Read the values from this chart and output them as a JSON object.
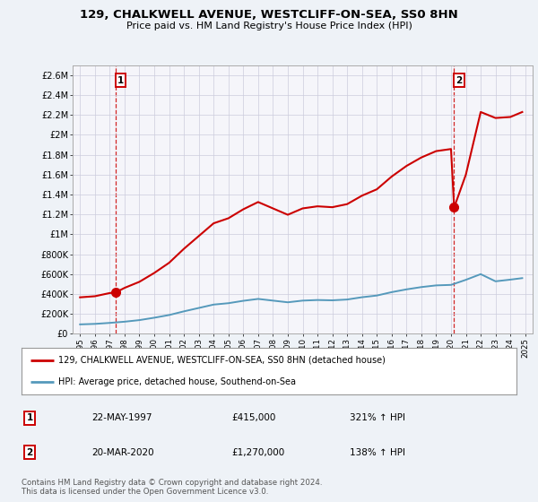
{
  "title": "129, CHALKWELL AVENUE, WESTCLIFF-ON-SEA, SS0 8HN",
  "subtitle": "Price paid vs. HM Land Registry's House Price Index (HPI)",
  "legend_line1": "129, CHALKWELL AVENUE, WESTCLIFF-ON-SEA, SS0 8HN (detached house)",
  "legend_line2": "HPI: Average price, detached house, Southend-on-Sea",
  "footnote": "Contains HM Land Registry data © Crown copyright and database right 2024.\nThis data is licensed under the Open Government Licence v3.0.",
  "transaction1_label": "1",
  "transaction1_date": "22-MAY-1997",
  "transaction1_price": "£415,000",
  "transaction1_hpi": "321% ↑ HPI",
  "transaction1_year": 1997.39,
  "transaction1_value": 415000,
  "transaction2_label": "2",
  "transaction2_date": "20-MAR-2020",
  "transaction2_price": "£1,270,000",
  "transaction2_hpi": "138% ↑ HPI",
  "transaction2_year": 2020.21,
  "transaction2_value": 1270000,
  "price_line_color": "#cc0000",
  "hpi_line_color": "#5599bb",
  "dashed_line_color": "#cc0000",
  "bg_color": "#eef2f7",
  "plot_bg_color": "#f5f5fa",
  "grid_color": "#ccccdd",
  "ylim": [
    0,
    2700000
  ],
  "yticks": [
    0,
    200000,
    400000,
    600000,
    800000,
    1000000,
    1200000,
    1400000,
    1600000,
    1800000,
    2000000,
    2200000,
    2400000,
    2600000
  ],
  "ytick_labels": [
    "£0",
    "£200K",
    "£400K",
    "£600K",
    "£800K",
    "£1M",
    "£1.2M",
    "£1.4M",
    "£1.6M",
    "£1.8M",
    "£2M",
    "£2.2M",
    "£2.4M",
    "£2.6M"
  ],
  "xlim": [
    1994.5,
    2025.5
  ],
  "xticks": [
    1995,
    1996,
    1997,
    1998,
    1999,
    2000,
    2001,
    2002,
    2003,
    2004,
    2005,
    2006,
    2007,
    2008,
    2009,
    2010,
    2011,
    2012,
    2013,
    2014,
    2015,
    2016,
    2017,
    2018,
    2019,
    2020,
    2021,
    2022,
    2023,
    2024,
    2025
  ],
  "price_data_x": [
    1995.0,
    1996.0,
    1997.0,
    1997.39,
    1998.0,
    1999.0,
    2000.0,
    2001.0,
    2002.0,
    2003.0,
    2004.0,
    2005.0,
    2006.0,
    2007.0,
    2008.0,
    2009.0,
    2010.0,
    2011.0,
    2012.0,
    2013.0,
    2014.0,
    2015.0,
    2016.0,
    2017.0,
    2018.0,
    2019.0,
    2020.0,
    2020.21,
    2021.0,
    2022.0,
    2023.0,
    2024.0,
    2024.8
  ],
  "price_data_y": [
    367000,
    378000,
    410000,
    415000,
    462000,
    523000,
    612000,
    714000,
    855000,
    983000,
    1111000,
    1162000,
    1252000,
    1325000,
    1261000,
    1197000,
    1261000,
    1282000,
    1273000,
    1304000,
    1389000,
    1453000,
    1581000,
    1688000,
    1773000,
    1837000,
    1858000,
    1270000,
    1600000,
    2230000,
    2170000,
    2180000,
    2230000
  ],
  "hpi_data_x": [
    1995.0,
    1996.0,
    1997.0,
    1998.0,
    1999.0,
    2000.0,
    2001.0,
    2002.0,
    2003.0,
    2004.0,
    2005.0,
    2006.0,
    2007.0,
    2008.0,
    2009.0,
    2010.0,
    2011.0,
    2012.0,
    2013.0,
    2014.0,
    2015.0,
    2016.0,
    2017.0,
    2018.0,
    2019.0,
    2020.0,
    2021.0,
    2022.0,
    2023.0,
    2024.0,
    2024.8
  ],
  "hpi_data_y": [
    95000,
    100000,
    110000,
    122000,
    138000,
    162000,
    189000,
    226000,
    260000,
    294000,
    308000,
    332000,
    351000,
    334000,
    317000,
    334000,
    340000,
    337000,
    345000,
    368000,
    385000,
    419000,
    447000,
    470000,
    487000,
    492000,
    543000,
    600000,
    528000,
    545000,
    560000
  ],
  "marker_color": "#cc0000",
  "marker_size": 7
}
